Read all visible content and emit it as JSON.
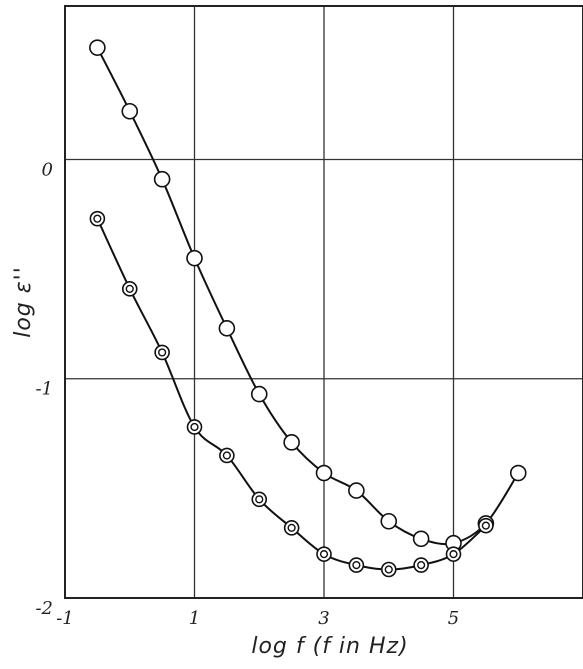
{
  "chart_data": {
    "type": "scatter",
    "title": "",
    "xlabel": "log f (f in Hz)",
    "ylabel": "log ε''",
    "xlim": [
      -1,
      7
    ],
    "ylim": [
      -2,
      0.7
    ],
    "x_ticks": [
      -1,
      1,
      3,
      5
    ],
    "x_tick_labels": [
      "-1",
      "1",
      "3",
      "5"
    ],
    "y_ticks": [
      0,
      -1,
      -2
    ],
    "y_tick_labels": [
      "0",
      "-1",
      "-2"
    ],
    "grid": true,
    "series": [
      {
        "marker": "open-circle",
        "fit_curve": true,
        "x": [
          -0.5,
          0,
          0.5,
          1,
          1.5,
          2,
          2.5,
          3,
          3.5,
          4,
          4.5,
          5,
          5.5,
          6
        ],
        "y": [
          0.51,
          0.22,
          -0.09,
          -0.45,
          -0.77,
          -1.07,
          -1.29,
          -1.43,
          -1.51,
          -1.65,
          -1.73,
          -1.75,
          -1.66,
          -1.43
        ]
      },
      {
        "marker": "double-circle",
        "fit_curve": true,
        "x": [
          -0.5,
          0,
          0.5,
          1,
          1.5,
          2,
          2.5,
          3,
          3.5,
          4,
          4.5,
          5,
          5.5
        ],
        "y": [
          -0.27,
          -0.59,
          -0.88,
          -1.22,
          -1.35,
          -1.55,
          -1.68,
          -1.8,
          -1.85,
          -1.87,
          -1.85,
          -1.8,
          -1.67
        ]
      }
    ]
  }
}
